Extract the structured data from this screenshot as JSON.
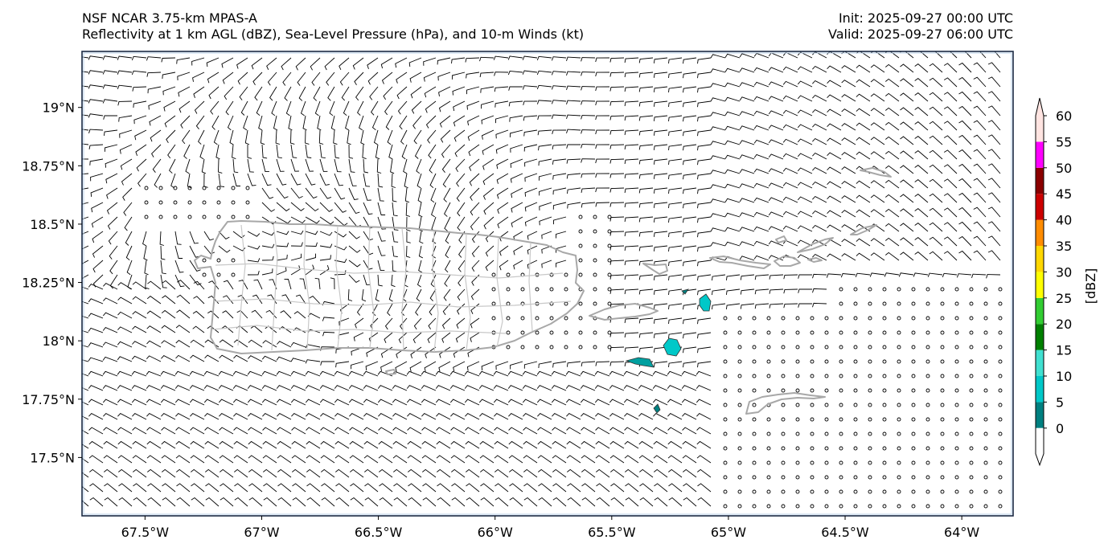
{
  "header": {
    "model": "NSF NCAR 3.75-km MPAS-A",
    "fields": "Reflectivity at 1 km AGL (dBZ), Sea-Level Pressure (hPa), and 10-m Winds (kt)",
    "init": "Init: 2025-09-27 00:00 UTC",
    "valid": "Valid: 2025-09-27 06:00 UTC"
  },
  "map": {
    "lon_range": [
      -67.77,
      -63.78
    ],
    "lat_range": [
      17.25,
      19.24
    ],
    "lat_ticks": [
      {
        "value": 19.0,
        "label": "19°N"
      },
      {
        "value": 18.75,
        "label": "18.75°N"
      },
      {
        "value": 18.5,
        "label": "18.5°N"
      },
      {
        "value": 18.25,
        "label": "18.25°N"
      },
      {
        "value": 18.0,
        "label": "18°N"
      },
      {
        "value": 17.75,
        "label": "17.75°N"
      },
      {
        "value": 17.5,
        "label": "17.5°N"
      }
    ],
    "lon_ticks": [
      {
        "value": -67.5,
        "label": "67.5°W"
      },
      {
        "value": -67.0,
        "label": "67°W"
      },
      {
        "value": -66.5,
        "label": "66.5°W"
      },
      {
        "value": -66.0,
        "label": "66°W"
      },
      {
        "value": -65.5,
        "label": "65.5°W"
      },
      {
        "value": -65.0,
        "label": "65°W"
      },
      {
        "value": -64.5,
        "label": "64.5°W"
      },
      {
        "value": -64.0,
        "label": "64°W"
      }
    ],
    "colors": {
      "coast": "#a8a8a8",
      "barb": "#000000",
      "frame": "#1a2a44"
    }
  },
  "colorbar": {
    "label": "[dBZ]",
    "ticks": [
      "0",
      "5",
      "10",
      "15",
      "20",
      "25",
      "30",
      "35",
      "40",
      "45",
      "50",
      "55",
      "60"
    ],
    "colors": [
      "#008080",
      "#00c8c8",
      "#40e0d0",
      "#008000",
      "#32cd32",
      "#ffff00",
      "#ffd700",
      "#ff8c00",
      "#cc0000",
      "#8b0000",
      "#ff00ff",
      "#ffe4e1"
    ]
  }
}
